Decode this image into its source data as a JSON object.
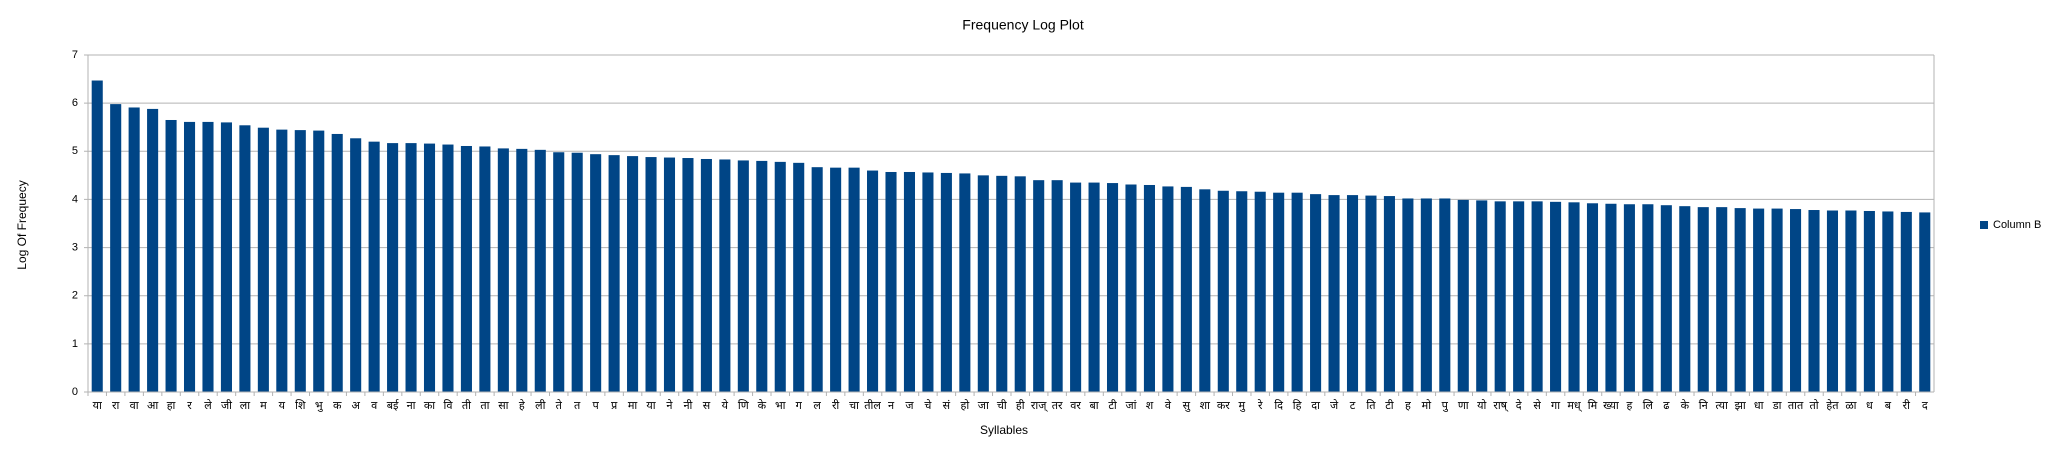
{
  "chart_data": {
    "type": "bar",
    "title": "Frequency Log Plot",
    "x_label": "Syllables",
    "y_label": "Log Of Frequecy",
    "categories": [
      "या",
      "रा",
      "वा",
      "आ",
      "हा",
      "र",
      "ले",
      "जी",
      "ला",
      "म",
      "य",
      "शि",
      "भु",
      "क",
      "अ",
      "व",
      "बई",
      "ना",
      "का",
      "वि",
      "ती",
      "ता",
      "सा",
      "हे",
      "ली",
      "ते",
      "त",
      "प",
      "प्र",
      "मा",
      "या",
      "ने",
      "नी",
      "स",
      "ये",
      "णि",
      "के",
      "भा",
      "ग",
      "ल",
      "री",
      "चा",
      "तील",
      "न",
      "ज",
      "चे",
      "सं",
      "हो",
      "जा",
      "ची",
      "ही",
      "राज्",
      "तर",
      "वर",
      "बा",
      "टी",
      "जां",
      "श",
      "वे",
      "सु",
      "शा",
      "कर",
      "मु",
      "रे",
      "दि",
      "हि",
      "दा",
      "जे",
      "ट",
      "ति",
      "टी",
      "ह",
      "मो",
      "पु",
      "णा",
      "यो",
      "राष्",
      "दे",
      "से",
      "गा",
      "मध्",
      "मि",
      "ख्या",
      "ह",
      "लि",
      "ढ",
      "के",
      "नि",
      "त्या",
      "झा",
      "धा",
      "डा",
      "तात",
      "तो",
      "हेत",
      "ळा",
      "ध",
      "ब",
      "री",
      "द"
    ],
    "series": [
      {
        "name": "Column B",
        "color": "#004586",
        "values": [
          6.47,
          5.98,
          5.91,
          5.88,
          5.65,
          5.61,
          5.61,
          5.6,
          5.54,
          5.49,
          5.45,
          5.44,
          5.43,
          5.36,
          5.27,
          5.2,
          5.17,
          5.17,
          5.16,
          5.14,
          5.11,
          5.1,
          5.06,
          5.05,
          5.03,
          4.98,
          4.97,
          4.94,
          4.92,
          4.9,
          4.88,
          4.87,
          4.86,
          4.84,
          4.83,
          4.81,
          4.8,
          4.78,
          4.76,
          4.67,
          4.66,
          4.66,
          4.6,
          4.57,
          4.57,
          4.56,
          4.55,
          4.54,
          4.5,
          4.49,
          4.48,
          4.4,
          4.4,
          4.35,
          4.35,
          4.34,
          4.31,
          4.3,
          4.27,
          4.26,
          4.21,
          4.18,
          4.17,
          4.16,
          4.14,
          4.14,
          4.11,
          4.09,
          4.09,
          4.08,
          4.07,
          4.02,
          4.02,
          4.02,
          3.99,
          3.98,
          3.96,
          3.96,
          3.96,
          3.95,
          3.94,
          3.92,
          3.91,
          3.9,
          3.9,
          3.88,
          3.86,
          3.84,
          3.84,
          3.82,
          3.81,
          3.81,
          3.8,
          3.78,
          3.77,
          3.77,
          3.76,
          3.75,
          3.74,
          3.73
        ]
      }
    ],
    "ylim": [
      0,
      7
    ],
    "yticks": [
      0,
      1,
      2,
      3,
      4,
      5,
      6,
      7
    ],
    "grid": true,
    "legend": "right"
  }
}
